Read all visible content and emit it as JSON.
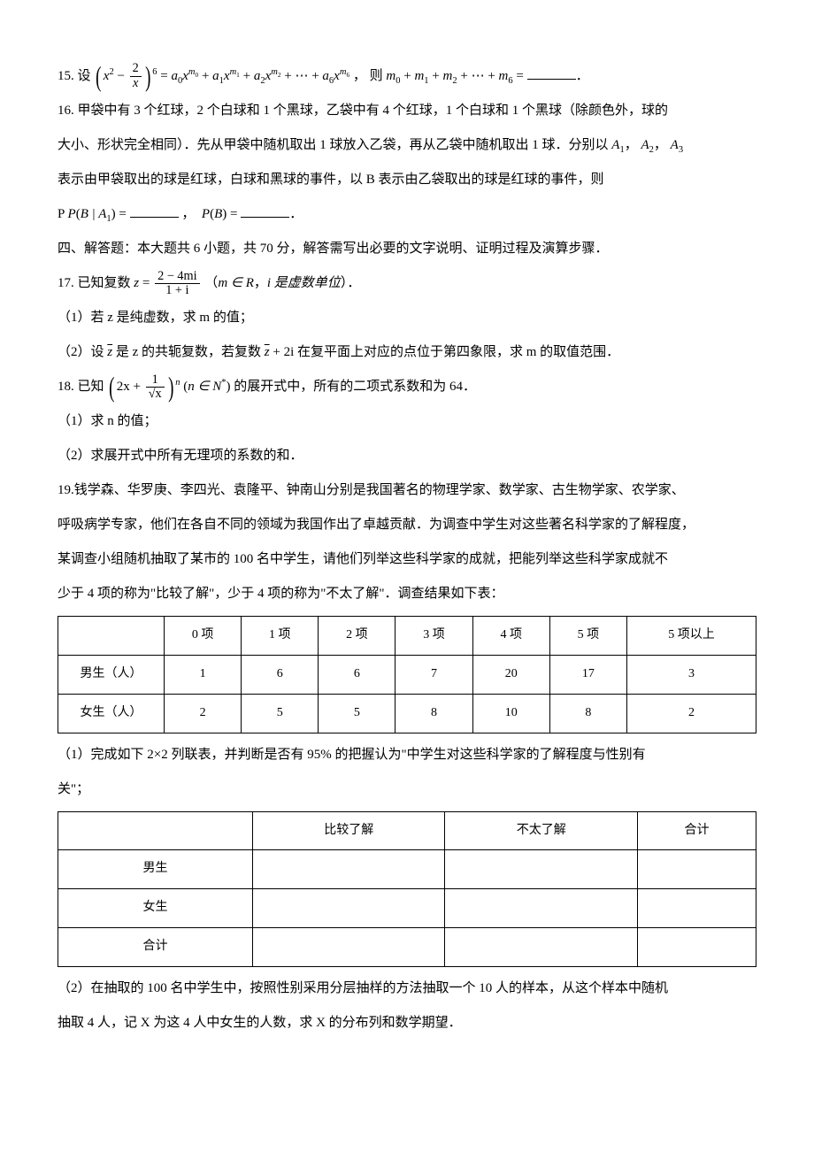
{
  "q15": {
    "num": "15.",
    "prefix": "设",
    "lhs_inner_a": "x",
    "lhs_inner_exp": "2",
    "lhs_inner_op": " − ",
    "lhs_frac_num": "2",
    "lhs_frac_den": "x",
    "lhs_outer_exp": "6",
    "eq": " = ",
    "rhs": "a",
    "m": "m",
    "plus": " + ",
    "dots": " + ⋯ + ",
    "comma": "，",
    "then": "则 ",
    "sum_lhs": "m",
    "tail": " ="
  },
  "q16": {
    "num": "16.",
    "line1": "甲袋中有 3 个红球，2 个白球和 1 个黑球，乙袋中有 4 个红球，1 个白球和 1 个黑球（除颜色外，球的",
    "line2a": "大小、形状完全相同）．先从甲袋中随机取出 1 球放入乙袋，再从乙袋中随机取出 1 球．分别以 ",
    "a1": "A",
    "comma": "，",
    "line3": "表示由甲袋取出的球是红球，白球和黑球的事件，以 B 表示由乙袋取出的球是红球的事件，则",
    "line4_p1": "P ",
    "line4_expr1a": "P",
    "line4_expr1b": "B | A",
    "line4_eq": " = ",
    "line4_expr2a": "P",
    "line4_expr2b": "B",
    "period": "．"
  },
  "section4": "四、解答题：本大题共 6 小题，共 70 分，解答需写出必要的文字说明、证明过程及演算步骤．",
  "q17": {
    "num": "17.",
    "prefix": "已知复数 ",
    "z": "z",
    "eq": " = ",
    "frac_num": "2 − 4mi",
    "frac_den": "1 + i",
    "paren": "（",
    "m_in": "m ∈ R",
    "comma": "，",
    "i_is": "i 是虚数单位",
    "paren_close": "）．",
    "p1": "（1）若 z 是纯虚数，求 m 的值；",
    "p2a": "（2）设 ",
    "p2b": " 是 z 的共轭复数，若复数 ",
    "p2c": " + 2i 在复平面上对应的点位于第四象限，求 m 的取值范围．",
    "zbar": "z"
  },
  "q18": {
    "num": "18.",
    "prefix": "已知",
    "inner_2x": "2x + ",
    "frac_num": "1",
    "frac_den": "√x",
    "exp": "n",
    "paren_l": "(",
    "n_in": "n ∈ N",
    "star": "*",
    "paren_r": ")",
    "tail": "的展开式中，所有的二项式系数和为 64．",
    "p1": "（1）求 n 的值；",
    "p2": "（2）求展开式中所有无理项的系数的和．"
  },
  "q19": {
    "num": "19.",
    "line1": "钱学森、华罗庚、李四光、袁隆平、钟南山分别是我国著名的物理学家、数学家、古生物学家、农学家、",
    "line2": "呼吸病学专家，他们在各自不同的领域为我国作出了卓越贡献．为调查中学生对这些著名科学家的了解程度，",
    "line3": "某调查小组随机抽取了某市的 100 名中学生，请他们列举这些科学家的成就，把能列举这些科学家成就不",
    "line4": "少于 4 项的称为\"比较了解\"，少于 4 项的称为\"不太了解\"．调查结果如下表：",
    "table1": {
      "headers": [
        "",
        "0 项",
        "1 项",
        "2 项",
        "3 项",
        "4 项",
        "5 项",
        "5 项以上"
      ],
      "rows": [
        [
          "男生（人）",
          "1",
          "6",
          "6",
          "7",
          "20",
          "17",
          "3"
        ],
        [
          "女生（人）",
          "2",
          "5",
          "5",
          "8",
          "10",
          "8",
          "2"
        ]
      ]
    },
    "p1a": "（1）完成如下 2×2 列联表，并判断是否有 95% 的把握认为\"中学生对这些科学家的了解程度与性别有",
    "p1b": "关\"；",
    "table2": {
      "headers": [
        "",
        "比较了解",
        "不太了解",
        "合计"
      ],
      "rows": [
        [
          "男生",
          "",
          "",
          ""
        ],
        [
          "女生",
          "",
          "",
          ""
        ],
        [
          "合计",
          "",
          "",
          ""
        ]
      ]
    },
    "p2a": "（2）在抽取的 100 名中学生中，按照性别采用分层抽样的方法抽取一个 10 人的样本，从这个样本中随机",
    "p2b": "抽取 4 人，记 X 为这 4 人中女生的人数，求 X 的分布列和数学期望．"
  },
  "style": {
    "text_color": "#000000",
    "background": "#ffffff",
    "font_size": 15,
    "table_border": "#000000"
  }
}
